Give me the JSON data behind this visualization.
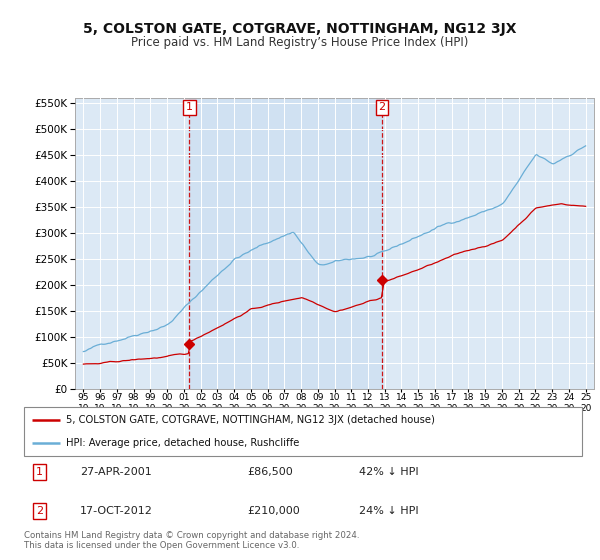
{
  "title": "5, COLSTON GATE, COTGRAVE, NOTTINGHAM, NG12 3JX",
  "subtitle": "Price paid vs. HM Land Registry’s House Price Index (HPI)",
  "bg_color": "#dce9f5",
  "highlight_color": "#c8ddf0",
  "grid_color": "#ffffff",
  "hpi_color": "#6aaed6",
  "price_color": "#cc0000",
  "sale1_x": 2001.33,
  "sale1_y": 86500,
  "sale2_x": 2012.83,
  "sale2_y": 210000,
  "sale1_label": "27-APR-2001",
  "sale1_price": "£86,500",
  "sale1_hpi": "42% ↓ HPI",
  "sale2_label": "17-OCT-2012",
  "sale2_price": "£210,000",
  "sale2_hpi": "24% ↓ HPI",
  "legend_label1": "5, COLSTON GATE, COTGRAVE, NOTTINGHAM, NG12 3JX (detached house)",
  "legend_label2": "HPI: Average price, detached house, Rushcliffe",
  "footer": "Contains HM Land Registry data © Crown copyright and database right 2024.\nThis data is licensed under the Open Government Licence v3.0.",
  "xlim": [
    1994.5,
    2025.5
  ],
  "ylim": [
    0,
    560000
  ],
  "yticks": [
    0,
    50000,
    100000,
    150000,
    200000,
    250000,
    300000,
    350000,
    400000,
    450000,
    500000,
    550000
  ]
}
